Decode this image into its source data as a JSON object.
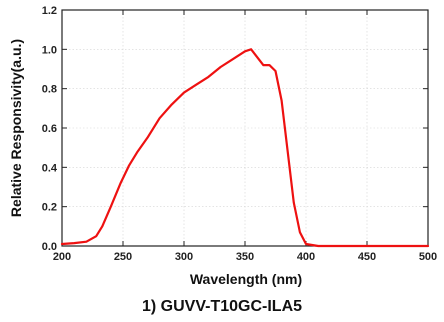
{
  "chart_data": {
    "type": "line",
    "title": "",
    "caption": "1) GUVV-T10GC-ILA5",
    "xlabel": "Wavelength (nm)",
    "ylabel": "Relative Responsivity(a.u.)",
    "xlim": [
      200,
      500
    ],
    "ylim": [
      0,
      1.2
    ],
    "x_ticks": [
      "200",
      "250",
      "300",
      "350",
      "400",
      "450",
      "500"
    ],
    "y_ticks": [
      "0.0",
      "0.2",
      "0.4",
      "0.6",
      "0.8",
      "1.0",
      "1.2"
    ],
    "grid": true,
    "legend": "none",
    "series": [
      {
        "color": "#ee1111",
        "x": [
          200,
          210,
          220,
          228,
          233,
          240,
          248,
          255,
          262,
          270,
          280,
          290,
          300,
          310,
          320,
          330,
          340,
          350,
          355,
          360,
          365,
          370,
          375,
          380,
          385,
          390,
          395,
          400,
          410,
          420,
          450,
          480,
          500
        ],
        "y": [
          0.01,
          0.015,
          0.022,
          0.05,
          0.1,
          0.2,
          0.32,
          0.41,
          0.48,
          0.55,
          0.65,
          0.72,
          0.78,
          0.82,
          0.86,
          0.91,
          0.95,
          0.99,
          1.0,
          0.96,
          0.92,
          0.92,
          0.89,
          0.74,
          0.48,
          0.22,
          0.07,
          0.01,
          0.0,
          0.0,
          0.0,
          0.0,
          0.0
        ]
      }
    ]
  }
}
